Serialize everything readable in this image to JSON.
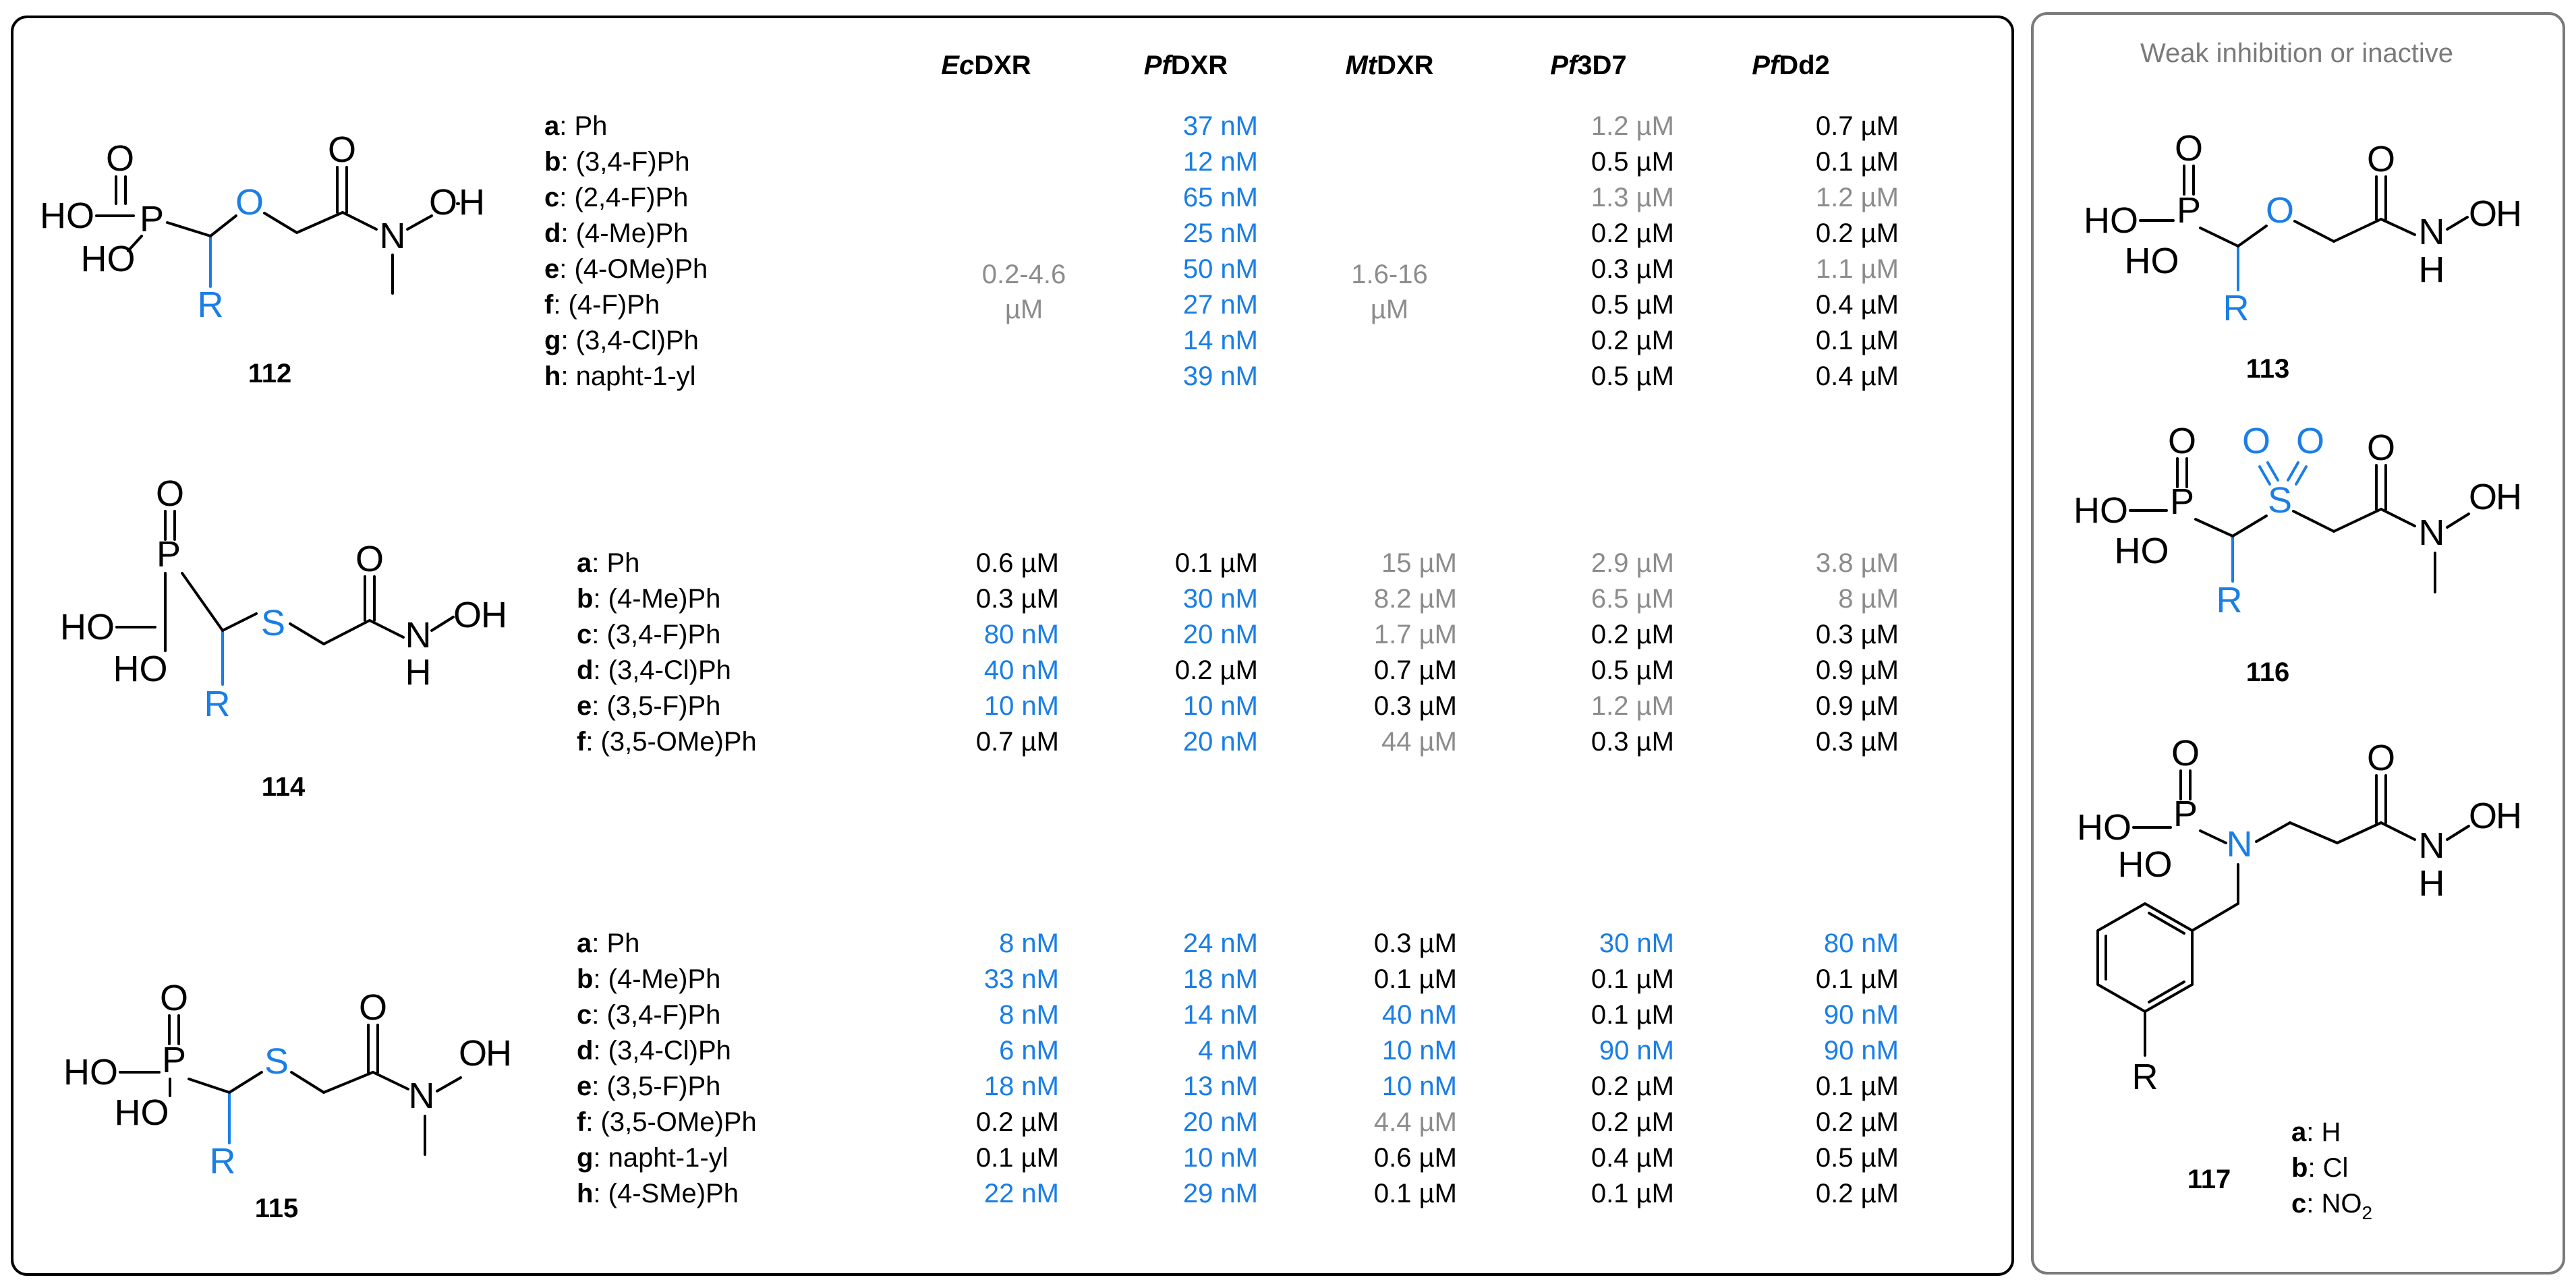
{
  "colors": {
    "active": "#1a7ee6",
    "weak": "#8c8c8c",
    "normal": "#000000"
  },
  "headers": [
    "EcDXR",
    "PfDXR",
    "MtDXR",
    "Pf3D7",
    "PfDd2"
  ],
  "compounds": {
    "c112": {
      "id": "112",
      "labels": [
        "a: Ph",
        "b: (3,4-F)Ph",
        "c: (2,4-F)Ph",
        "d: (4-Me)Ph",
        "e: (4-OMe)Ph",
        "f: (4-F)Ph",
        "g: (3,4-Cl)Ph",
        "h: napht-1-yl"
      ],
      "ec": {
        "line1": "0.2-4.6",
        "line2": "µM",
        "tone": "weak"
      },
      "mt": {
        "line1": "1.6-16",
        "line2": "µM",
        "tone": "weak"
      },
      "pf": [
        {
          "v": "37 nM",
          "t": "active"
        },
        {
          "v": "12 nM",
          "t": "active"
        },
        {
          "v": "65 nM",
          "t": "active"
        },
        {
          "v": "25 nM",
          "t": "active"
        },
        {
          "v": "50 nM",
          "t": "active"
        },
        {
          "v": "27 nM",
          "t": "active"
        },
        {
          "v": "14 nM",
          "t": "active"
        },
        {
          "v": "39 nM",
          "t": "active"
        }
      ],
      "p3d7": [
        {
          "v": "1.2 µM",
          "t": "weak"
        },
        {
          "v": "0.5 µM",
          "t": "normal"
        },
        {
          "v": "1.3 µM",
          "t": "weak"
        },
        {
          "v": "0.2 µM",
          "t": "normal"
        },
        {
          "v": "0.3 µM",
          "t": "normal"
        },
        {
          "v": "0.5 µM",
          "t": "normal"
        },
        {
          "v": "0.2 µM",
          "t": "normal"
        },
        {
          "v": "0.5 µM",
          "t": "normal"
        }
      ],
      "dd2": [
        {
          "v": "0.7 µM",
          "t": "normal"
        },
        {
          "v": "0.1 µM",
          "t": "normal"
        },
        {
          "v": "1.2 µM",
          "t": "weak"
        },
        {
          "v": "0.2 µM",
          "t": "normal"
        },
        {
          "v": "1.1 µM",
          "t": "weak"
        },
        {
          "v": "0.4 µM",
          "t": "normal"
        },
        {
          "v": "0.1 µM",
          "t": "normal"
        },
        {
          "v": "0.4 µM",
          "t": "normal"
        }
      ]
    },
    "c114": {
      "id": "114",
      "labels": [
        "a: Ph",
        "b: (4-Me)Ph",
        "c: (3,4-F)Ph",
        "d: (3,4-Cl)Ph",
        "e: (3,5-F)Ph",
        "f: (3,5-OMe)Ph"
      ],
      "ec": [
        {
          "v": "0.6 µM",
          "t": "normal"
        },
        {
          "v": "0.3 µM",
          "t": "normal"
        },
        {
          "v": "80 nM",
          "t": "active"
        },
        {
          "v": "40 nM",
          "t": "active"
        },
        {
          "v": "10 nM",
          "t": "active"
        },
        {
          "v": "0.7 µM",
          "t": "normal"
        }
      ],
      "pf": [
        {
          "v": "0.1 µM",
          "t": "normal"
        },
        {
          "v": "30 nM",
          "t": "active"
        },
        {
          "v": "20 nM",
          "t": "active"
        },
        {
          "v": "0.2 µM",
          "t": "normal"
        },
        {
          "v": "10 nM",
          "t": "active"
        },
        {
          "v": "20 nM",
          "t": "active"
        }
      ],
      "mt": [
        {
          "v": "15 µM",
          "t": "weak"
        },
        {
          "v": "8.2 µM",
          "t": "weak"
        },
        {
          "v": "1.7 µM",
          "t": "weak"
        },
        {
          "v": "0.7 µM",
          "t": "normal"
        },
        {
          "v": "0.3 µM",
          "t": "normal"
        },
        {
          "v": "44 µM",
          "t": "weak"
        }
      ],
      "p3d7": [
        {
          "v": "2.9 µM",
          "t": "weak"
        },
        {
          "v": "6.5 µM",
          "t": "weak"
        },
        {
          "v": "0.2 µM",
          "t": "normal"
        },
        {
          "v": "0.5 µM",
          "t": "normal"
        },
        {
          "v": "1.2 µM",
          "t": "weak"
        },
        {
          "v": "0.3 µM",
          "t": "normal"
        }
      ],
      "dd2": [
        {
          "v": "3.8 µM",
          "t": "weak"
        },
        {
          "v": "8 µM",
          "t": "weak"
        },
        {
          "v": "0.3 µM",
          "t": "normal"
        },
        {
          "v": "0.9 µM",
          "t": "normal"
        },
        {
          "v": "0.9 µM",
          "t": "normal"
        },
        {
          "v": "0.3 µM",
          "t": "normal"
        }
      ]
    },
    "c115": {
      "id": "115",
      "labels": [
        "a: Ph",
        "b: (4-Me)Ph",
        "c: (3,4-F)Ph",
        "d: (3,4-Cl)Ph",
        "e: (3,5-F)Ph",
        "f: (3,5-OMe)Ph",
        "g: napht-1-yl",
        "h: (4-SMe)Ph"
      ],
      "ec": [
        {
          "v": "8 nM",
          "t": "active"
        },
        {
          "v": "33 nM",
          "t": "active"
        },
        {
          "v": "8 nM",
          "t": "active"
        },
        {
          "v": "6 nM",
          "t": "active"
        },
        {
          "v": "18 nM",
          "t": "active"
        },
        {
          "v": "0.2 µM",
          "t": "normal"
        },
        {
          "v": "0.1 µM",
          "t": "normal"
        },
        {
          "v": "22 nM",
          "t": "active"
        }
      ],
      "pf": [
        {
          "v": "24 nM",
          "t": "active"
        },
        {
          "v": "18 nM",
          "t": "active"
        },
        {
          "v": "14 nM",
          "t": "active"
        },
        {
          "v": "4 nM",
          "t": "active"
        },
        {
          "v": "13 nM",
          "t": "active"
        },
        {
          "v": "20 nM",
          "t": "active"
        },
        {
          "v": "10 nM",
          "t": "active"
        },
        {
          "v": "29 nM",
          "t": "active"
        }
      ],
      "mt": [
        {
          "v": "0.3 µM",
          "t": "normal"
        },
        {
          "v": "0.1 µM",
          "t": "normal"
        },
        {
          "v": "40 nM",
          "t": "active"
        },
        {
          "v": "10 nM",
          "t": "active"
        },
        {
          "v": "10 nM",
          "t": "active"
        },
        {
          "v": "4.4 µM",
          "t": "weak"
        },
        {
          "v": "0.6 µM",
          "t": "normal"
        },
        {
          "v": "0.1 µM",
          "t": "normal"
        }
      ],
      "p3d7": [
        {
          "v": "30 nM",
          "t": "active"
        },
        {
          "v": "0.1 µM",
          "t": "normal"
        },
        {
          "v": "0.1 µM",
          "t": "normal"
        },
        {
          "v": "90 nM",
          "t": "active"
        },
        {
          "v": "0.2 µM",
          "t": "normal"
        },
        {
          "v": "0.2 µM",
          "t": "normal"
        },
        {
          "v": "0.4 µM",
          "t": "normal"
        },
        {
          "v": "0.1 µM",
          "t": "normal"
        }
      ],
      "dd2": [
        {
          "v": "80 nM",
          "t": "active"
        },
        {
          "v": "0.1 µM",
          "t": "normal"
        },
        {
          "v": "90 nM",
          "t": "active"
        },
        {
          "v": "90 nM",
          "t": "active"
        },
        {
          "v": "0.1 µM",
          "t": "normal"
        },
        {
          "v": "0.2 µM",
          "t": "normal"
        },
        {
          "v": "0.5 µM",
          "t": "normal"
        },
        {
          "v": "0.2 µM",
          "t": "normal"
        }
      ]
    }
  },
  "side_panel": {
    "title": "Weak inhibition or inactive",
    "c113": "113",
    "c116": "116",
    "c117": {
      "id": "117",
      "labels": [
        "a: H",
        "b: Cl",
        "c: NO2"
      ]
    }
  },
  "atoms": {
    "P": "P",
    "O": "O",
    "S": "S",
    "N": "N",
    "H": "H",
    "R": "R",
    "HO": "HO",
    "OH": "OH"
  }
}
